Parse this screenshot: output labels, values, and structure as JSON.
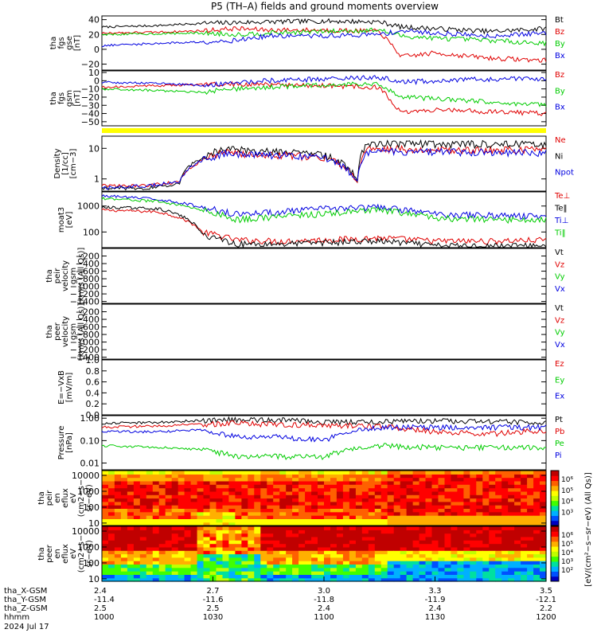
{
  "title": "P5 (TH–A) fields and ground moments overview",
  "colors": {
    "black": "#000000",
    "red": "#e00000",
    "green": "#00cc00",
    "blue": "#0000e0",
    "yellow": "#ffff00"
  },
  "time_axis": {
    "ticks": [
      "1000",
      "1030",
      "1100",
      "1130",
      "1200"
    ],
    "ephemeris": [
      {
        "label": "tha_X-GSM",
        "values": [
          "2.4",
          "2.7",
          "3.0",
          "3.3",
          "3.5"
        ]
      },
      {
        "label": "tha_Y-GSM",
        "values": [
          "-11.4",
          "-11.6",
          "-11.8",
          "-11.9",
          "-12.1"
        ]
      },
      {
        "label": "tha_Z-GSM",
        "values": [
          "2.5",
          "2.5",
          "2.4",
          "2.4",
          "2.2"
        ]
      },
      {
        "label": "hhmm",
        "values": [
          "1000",
          "1030",
          "1100",
          "1130",
          "1200"
        ]
      }
    ],
    "date": "2024 Jul 17"
  },
  "chart_data": [
    {
      "type": "line",
      "panel": "fgs-gse",
      "ylabel": [
        "tha",
        "fgs",
        "gse",
        "[nT]"
      ],
      "ylim": [
        -28,
        45
      ],
      "yticks": [
        "40",
        "20",
        "0",
        "−20"
      ],
      "ytick_values": [
        40,
        20,
        0,
        -20
      ],
      "legend": [
        {
          "name": "Bt",
          "color": "#000000"
        },
        {
          "name": "Bz",
          "color": "#e00000"
        },
        {
          "name": "By",
          "color": "#00cc00"
        },
        {
          "name": "Bx",
          "color": "#0000e0"
        }
      ],
      "series": [
        {
          "name": "Bt",
          "x": [
            10.0,
            10.25,
            10.45,
            10.6,
            10.75,
            11.0,
            11.25,
            11.35,
            11.5,
            11.75,
            12.0
          ],
          "y": [
            30,
            32,
            35,
            36,
            37,
            38,
            37,
            30,
            28,
            24,
            28
          ]
        },
        {
          "name": "Bz",
          "x": [
            10.0,
            10.25,
            10.45,
            10.6,
            10.75,
            11.0,
            11.25,
            11.35,
            11.5,
            11.75,
            12.0
          ],
          "y": [
            22,
            23,
            25,
            28,
            26,
            26,
            24,
            -10,
            -5,
            -12,
            -15
          ]
        },
        {
          "name": "By",
          "x": [
            10.0,
            10.25,
            10.45,
            10.6,
            10.75,
            11.0,
            11.25,
            11.35,
            11.5,
            11.75,
            12.0
          ],
          "y": [
            20,
            21,
            22,
            20,
            22,
            24,
            26,
            18,
            15,
            12,
            8
          ]
        },
        {
          "name": "Bx",
          "x": [
            10.0,
            10.25,
            10.45,
            10.6,
            10.75,
            11.0,
            11.25,
            11.35,
            11.5,
            11.75,
            12.0
          ],
          "y": [
            5,
            8,
            10,
            12,
            18,
            18,
            20,
            25,
            22,
            18,
            22
          ]
        }
      ]
    },
    {
      "type": "line",
      "panel": "fgs-gsm",
      "ylabel": [
        "tha",
        "fgs",
        "gsm",
        "[nT]"
      ],
      "ylim": [
        -55,
        12
      ],
      "yticks": [
        "10",
        "0",
        "−10",
        "−20",
        "−30",
        "−40",
        "−50"
      ],
      "ytick_values": [
        10,
        0,
        -10,
        -20,
        -30,
        -40,
        -50
      ],
      "legend": [
        {
          "name": "Bz",
          "color": "#e00000"
        },
        {
          "name": "By",
          "color": "#00cc00"
        },
        {
          "name": "Bx",
          "color": "#0000e0"
        }
      ],
      "series": [
        {
          "name": "Bz",
          "x": [
            10.0,
            10.25,
            10.45,
            10.6,
            10.75,
            11.0,
            11.25,
            11.35,
            11.5,
            11.75,
            12.0
          ],
          "y": [
            -8,
            -6,
            -5,
            -4,
            -5,
            -6,
            -8,
            -40,
            -35,
            -38,
            -40
          ]
        },
        {
          "name": "By",
          "x": [
            10.0,
            10.25,
            10.45,
            10.6,
            10.75,
            11.0,
            11.25,
            11.35,
            11.5,
            11.75,
            12.0
          ],
          "y": [
            -10,
            -12,
            -14,
            -10,
            -8,
            -5,
            -4,
            -20,
            -22,
            -26,
            -30
          ]
        },
        {
          "name": "Bx",
          "x": [
            10.0,
            10.25,
            10.45,
            10.6,
            10.75,
            11.0,
            11.25,
            11.35,
            11.5,
            11.75,
            12.0
          ],
          "y": [
            -2,
            -3,
            -6,
            -2,
            0,
            2,
            4,
            -2,
            0,
            2,
            2
          ]
        }
      ]
    },
    {
      "type": "line",
      "panel": "density",
      "ylabel": [
        "Density",
        "[1/cc]",
        "[cm−3]"
      ],
      "yscale": "log",
      "ylim": [
        0.4,
        25
      ],
      "yticks": [
        "10",
        "1"
      ],
      "ytick_values": [
        10,
        1
      ],
      "legend": [
        {
          "name": "Ne",
          "color": "#e00000"
        },
        {
          "name": "Ni",
          "color": "#000000"
        },
        {
          "name": "Npot",
          "color": "#0000e0"
        }
      ],
      "series": [
        {
          "name": "Ne",
          "x": [
            10.0,
            10.2,
            10.35,
            10.45,
            10.55,
            10.7,
            10.85,
            11.0,
            11.15,
            11.2,
            11.5,
            12.0
          ],
          "y": [
            0.6,
            0.6,
            0.8,
            4,
            8,
            6,
            6,
            5,
            0.8,
            10,
            9,
            9
          ]
        },
        {
          "name": "Ni",
          "x": [
            10.0,
            10.2,
            10.35,
            10.45,
            10.55,
            10.7,
            10.85,
            11.0,
            11.15,
            11.2,
            11.5,
            12.0
          ],
          "y": [
            0.5,
            0.5,
            0.7,
            5,
            10,
            8,
            8,
            6,
            0.9,
            15,
            14,
            14
          ]
        },
        {
          "name": "Npot",
          "x": [
            10.0,
            10.2,
            10.35,
            10.45,
            10.55,
            10.7,
            10.85,
            11.0,
            11.15,
            11.2,
            11.5,
            12.0
          ],
          "y": [
            0.5,
            0.6,
            0.8,
            4,
            7,
            6,
            6,
            5,
            0.8,
            8,
            8,
            7
          ]
        }
      ]
    },
    {
      "type": "line",
      "panel": "temperature",
      "ylabel": [
        "moat3",
        "[eV]"
      ],
      "yscale": "log",
      "ylim": [
        25,
        3500
      ],
      "yticks": [
        "1000",
        "100"
      ],
      "ytick_values": [
        1000,
        100
      ],
      "legend": [
        {
          "name": "Te⊥",
          "color": "#e00000"
        },
        {
          "name": "Te‖",
          "color": "#000000"
        },
        {
          "name": "Ti⊥",
          "color": "#0000e0"
        },
        {
          "name": "Ti‖",
          "color": "#00cc00"
        }
      ],
      "series": [
        {
          "name": "Te⊥",
          "x": [
            10.0,
            10.25,
            10.45,
            10.6,
            10.8,
            11.0,
            11.25,
            11.5,
            11.75,
            12.0
          ],
          "y": [
            700,
            600,
            100,
            50,
            45,
            50,
            60,
            45,
            45,
            50
          ]
        },
        {
          "name": "Te‖",
          "x": [
            10.0,
            10.25,
            10.45,
            10.6,
            10.8,
            11.0,
            11.25,
            11.5,
            11.75,
            12.0
          ],
          "y": [
            900,
            800,
            80,
            35,
            35,
            40,
            45,
            30,
            30,
            30
          ]
        },
        {
          "name": "Ti⊥",
          "x": [
            10.0,
            10.25,
            10.45,
            10.6,
            10.8,
            11.0,
            11.25,
            11.5,
            11.75,
            12.0
          ],
          "y": [
            2500,
            1800,
            900,
            500,
            600,
            800,
            900,
            500,
            450,
            400
          ]
        },
        {
          "name": "Ti‖",
          "x": [
            10.0,
            10.25,
            10.45,
            10.6,
            10.8,
            11.0,
            11.25,
            11.5,
            11.75,
            12.0
          ],
          "y": [
            2000,
            1500,
            700,
            300,
            400,
            500,
            700,
            350,
            300,
            300
          ]
        }
      ]
    },
    {
      "type": "line",
      "panel": "peir-velocity",
      "ylabel": [
        "tha",
        "peir",
        "velocity",
        "gsm",
        "[km/s (All Qs)]"
      ],
      "ylim": [
        -1450,
        0
      ],
      "yticks": [
        "−200",
        "−400",
        "−600",
        "−800",
        "−1000",
        "−1200",
        "−1400"
      ],
      "ytick_values": [
        -200,
        -400,
        -600,
        -800,
        -1000,
        -1200,
        -1400
      ],
      "legend": [
        {
          "name": "Vt",
          "color": "#000000"
        },
        {
          "name": "Vz",
          "color": "#e00000"
        },
        {
          "name": "Vy",
          "color": "#00cc00"
        },
        {
          "name": "Vx",
          "color": "#0000e0"
        }
      ],
      "series": []
    },
    {
      "type": "line",
      "panel": "peer-velocity",
      "ylabel": [
        "tha",
        "peer",
        "velocity",
        "gsm",
        "[km/s (All Qs)]"
      ],
      "ylim": [
        -1450,
        0
      ],
      "yticks": [
        "−200",
        "−400",
        "−600",
        "−800",
        "−1000",
        "−1200",
        "−1400"
      ],
      "ytick_values": [
        -200,
        -400,
        -600,
        -800,
        -1000,
        -1200,
        -1400
      ],
      "legend": [
        {
          "name": "Vt",
          "color": "#000000"
        },
        {
          "name": "Vz",
          "color": "#e00000"
        },
        {
          "name": "Vy",
          "color": "#00cc00"
        },
        {
          "name": "Vx",
          "color": "#0000e0"
        }
      ],
      "series": []
    },
    {
      "type": "line",
      "panel": "efield",
      "ylabel": [
        "E=−VxB",
        "[mV/m]"
      ],
      "ylim": [
        0,
        1
      ],
      "yticks": [
        "1.0",
        "0.8",
        "0.6",
        "0.4",
        "0.2",
        "0.0"
      ],
      "ytick_values": [
        1.0,
        0.8,
        0.6,
        0.4,
        0.2,
        0.0
      ],
      "legend": [
        {
          "name": "Ez",
          "color": "#e00000"
        },
        {
          "name": "Ey",
          "color": "#00cc00"
        },
        {
          "name": "Ex",
          "color": "#0000e0"
        }
      ],
      "series": []
    },
    {
      "type": "line",
      "panel": "pressure",
      "ylabel": [
        "Pressure",
        "[nPa]"
      ],
      "yscale": "log",
      "ylim": [
        0.005,
        1.3
      ],
      "yticks": [
        "1.00",
        "0.10",
        "0.01"
      ],
      "ytick_values": [
        1.0,
        0.1,
        0.01
      ],
      "legend": [
        {
          "name": "Pt",
          "color": "#000000"
        },
        {
          "name": "Pb",
          "color": "#e00000"
        },
        {
          "name": "Pe",
          "color": "#00cc00"
        },
        {
          "name": "Pi",
          "color": "#0000e0"
        }
      ],
      "series": [
        {
          "name": "Pt",
          "x": [
            10.0,
            10.25,
            10.45,
            10.6,
            10.8,
            11.0,
            11.25,
            11.5,
            11.75,
            12.0
          ],
          "y": [
            0.6,
            0.65,
            0.8,
            0.9,
            0.85,
            0.7,
            0.7,
            0.8,
            0.7,
            0.7
          ]
        },
        {
          "name": "Pb",
          "x": [
            10.0,
            10.25,
            10.45,
            10.6,
            10.8,
            11.0,
            11.25,
            11.5,
            11.75,
            12.0
          ],
          "y": [
            0.4,
            0.45,
            0.55,
            0.6,
            0.55,
            0.5,
            0.45,
            0.25,
            0.2,
            0.3
          ]
        },
        {
          "name": "Pe",
          "x": [
            10.0,
            10.25,
            10.45,
            10.6,
            10.8,
            11.0,
            11.25,
            11.5,
            11.75,
            12.0
          ],
          "y": [
            0.06,
            0.05,
            0.04,
            0.02,
            0.02,
            0.02,
            0.06,
            0.05,
            0.05,
            0.05
          ]
        },
        {
          "name": "Pi",
          "x": [
            10.0,
            10.25,
            10.45,
            10.6,
            10.8,
            11.0,
            11.25,
            11.5,
            11.75,
            12.0
          ],
          "y": [
            0.25,
            0.25,
            0.3,
            0.15,
            0.15,
            0.1,
            0.4,
            0.4,
            0.4,
            0.4
          ]
        }
      ]
    },
    {
      "type": "heatmap",
      "panel": "peir-spectrogram",
      "ylabel": [
        "tha",
        "peir",
        "en",
        "eflux",
        "eV",
        "(cm2−s−",
        "sr−eV)"
      ],
      "yscale": "log",
      "ylim": [
        7,
        20000
      ],
      "yticks": [
        "10000",
        "1000",
        "100",
        "10"
      ],
      "ytick_values": [
        10000,
        1000,
        100,
        10
      ]
    },
    {
      "type": "heatmap",
      "panel": "peer-spectrogram",
      "ylabel": [
        "tha",
        "peer",
        "en",
        "eflux",
        "eV",
        "(cm2−s−",
        "sr−eV)"
      ],
      "yscale": "log",
      "ylim": [
        7,
        20000
      ],
      "yticks": [
        "10000",
        "1000",
        "100",
        "10"
      ],
      "ytick_values": [
        10000,
        1000,
        100,
        10
      ]
    }
  ],
  "colorbar": {
    "upper_ticks": [
      "10⁶",
      "10⁵",
      "10⁴",
      "10³"
    ],
    "lower_ticks": [
      "10⁶",
      "10⁵",
      "10⁴",
      "10³",
      "10²"
    ],
    "label": "[eV/(cm²−s−sr−eV) (All Qs)]"
  }
}
